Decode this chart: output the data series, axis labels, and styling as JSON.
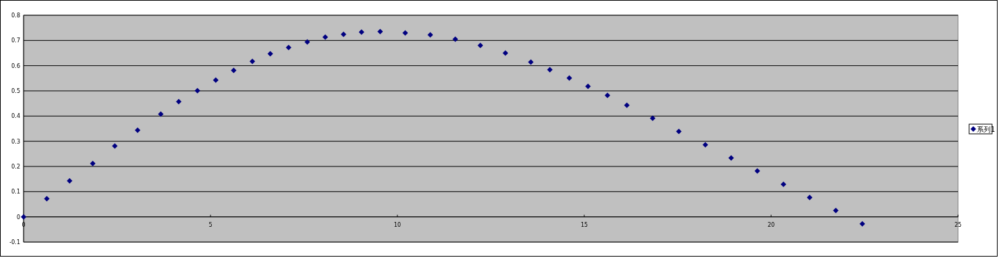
{
  "chart_data": {
    "type": "scatter",
    "x": [
      0,
      0.62,
      1.23,
      1.85,
      2.44,
      3.05,
      3.67,
      4.15,
      4.65,
      5.14,
      5.62,
      6.12,
      6.6,
      7.09,
      7.59,
      8.07,
      8.56,
      9.04,
      9.54,
      10.21,
      10.88,
      11.55,
      12.22,
      12.89,
      13.57,
      14.08,
      14.6,
      15.1,
      15.62,
      16.14,
      16.83,
      17.53,
      18.24,
      18.93,
      19.63,
      20.33,
      21.03,
      21.73,
      22.44
    ],
    "series": [
      {
        "name": "系列1",
        "color": "#000080",
        "values": [
          0,
          0.072,
          0.143,
          0.212,
          0.281,
          0.344,
          0.408,
          0.457,
          0.501,
          0.543,
          0.581,
          0.617,
          0.647,
          0.672,
          0.694,
          0.713,
          0.724,
          0.733,
          0.735,
          0.73,
          0.722,
          0.705,
          0.68,
          0.65,
          0.614,
          0.584,
          0.551,
          0.518,
          0.482,
          0.443,
          0.391,
          0.339,
          0.286,
          0.234,
          0.182,
          0.129,
          0.077,
          0.025,
          -0.028
        ]
      }
    ],
    "xlim": [
      0,
      25
    ],
    "ylim": [
      -0.1,
      0.8
    ],
    "xticks": [
      0,
      5,
      10,
      15,
      20,
      25
    ],
    "yticks": [
      -0.1,
      0,
      0.1,
      0.2,
      0.3,
      0.4,
      0.5,
      0.6,
      0.7,
      0.8
    ],
    "grid": "y",
    "legend": "right",
    "marker": "diamond"
  }
}
